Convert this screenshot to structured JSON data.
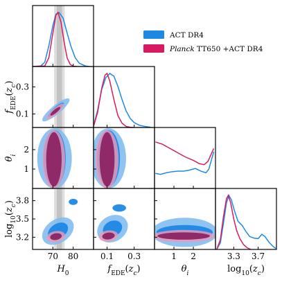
{
  "chart_data": {
    "type": "triangle",
    "legend": {
      "placement": "top-right",
      "entries": [
        {
          "name": "ACT DR4",
          "color": "#1E88E5"
        },
        {
          "name": "Planck TT650 +ACT DR4",
          "color": "#D81B60"
        }
      ]
    },
    "parameters": [
      {
        "key": "H0",
        "label": "H_0",
        "range": [
          60,
          90
        ],
        "ticks": [
          70,
          80
        ],
        "tick_labels": [
          "70",
          "80"
        ]
      },
      {
        "key": "fEDE",
        "label": "f_EDE(z_c)",
        "range": [
          0,
          0.45
        ],
        "ticks": [
          0.1,
          0.3
        ],
        "tick_labels": [
          "0.1",
          "0.3"
        ]
      },
      {
        "key": "theta_i",
        "label": "θ_i",
        "range": [
          0,
          3.14
        ],
        "ticks": [
          1,
          2
        ],
        "tick_labels": [
          "1",
          "2"
        ]
      },
      {
        "key": "log10zc",
        "label": "log10(z_c)",
        "range": [
          3.0,
          4.0
        ],
        "ticks": [
          3.3,
          3.7
        ],
        "tick_labels": [
          "3.3",
          "3.7"
        ]
      }
    ],
    "y_axis_ticks": {
      "fEDE": [
        0.1,
        0.3
      ],
      "theta_i": [
        1,
        2
      ],
      "log10zc": [
        3.2,
        3.5,
        3.8
      ]
    },
    "y_axis_tick_labels": {
      "fEDE": [
        "0.1",
        "0.3"
      ],
      "theta_i": [
        "1",
        "2"
      ],
      "log10zc": [
        "3.2",
        "3.5",
        "3.8"
      ]
    },
    "shaded_band": {
      "param": "H0",
      "center": 73.2,
      "inner_halfwidth": 1.3,
      "outer_halfwidth": 2.6
    },
    "marginals": {
      "H0": {
        "ACT DR4": [
          [
            60,
            0
          ],
          [
            64,
            0.01
          ],
          [
            66,
            0.08
          ],
          [
            68,
            0.38
          ],
          [
            70,
            0.76
          ],
          [
            71.5,
            0.97
          ],
          [
            73,
            1.0
          ],
          [
            75,
            0.9
          ],
          [
            77,
            0.62
          ],
          [
            79,
            0.36
          ],
          [
            81,
            0.16
          ],
          [
            83,
            0.06
          ],
          [
            86,
            0.01
          ],
          [
            88,
            0
          ]
        ],
        "Planck TT650 +ACT DR4": [
          [
            60,
            0
          ],
          [
            66,
            0.01
          ],
          [
            68,
            0.16
          ],
          [
            70,
            0.62
          ],
          [
            71.5,
            0.95
          ],
          [
            72.5,
            1.0
          ],
          [
            74,
            0.82
          ],
          [
            75.5,
            0.46
          ],
          [
            77,
            0.16
          ],
          [
            78.5,
            0.04
          ],
          [
            80,
            0.005
          ],
          [
            82,
            0
          ]
        ]
      },
      "fEDE": {
        "ACT DR4": [
          [
            0,
            0.03
          ],
          [
            0.03,
            0.32
          ],
          [
            0.06,
            0.7
          ],
          [
            0.09,
            0.92
          ],
          [
            0.12,
            1.0
          ],
          [
            0.15,
            0.95
          ],
          [
            0.18,
            0.76
          ],
          [
            0.21,
            0.52
          ],
          [
            0.24,
            0.31
          ],
          [
            0.27,
            0.17
          ],
          [
            0.3,
            0.09
          ],
          [
            0.34,
            0.04
          ],
          [
            0.38,
            0.02
          ],
          [
            0.42,
            0.005
          ]
        ],
        "Planck TT650 +ACT DR4": [
          [
            0,
            0.02
          ],
          [
            0.03,
            0.28
          ],
          [
            0.06,
            0.72
          ],
          [
            0.085,
            0.97
          ],
          [
            0.1,
            1.0
          ],
          [
            0.12,
            0.86
          ],
          [
            0.15,
            0.52
          ],
          [
            0.18,
            0.22
          ],
          [
            0.21,
            0.08
          ],
          [
            0.24,
            0.02
          ],
          [
            0.27,
            0.005
          ],
          [
            0.3,
            0
          ]
        ]
      },
      "theta_i": {
        "ACT DR4": [
          [
            0.05,
            0.28
          ],
          [
            0.3,
            0.26
          ],
          [
            0.6,
            0.29
          ],
          [
            0.9,
            0.31
          ],
          [
            1.2,
            0.32
          ],
          [
            1.5,
            0.32
          ],
          [
            1.8,
            0.34
          ],
          [
            2.1,
            0.37
          ],
          [
            2.4,
            0.32
          ],
          [
            2.65,
            0.29
          ],
          [
            2.8,
            0.36
          ],
          [
            2.95,
            0.55
          ],
          [
            3.05,
            0.68
          ]
        ],
        "Planck TT650 +ACT DR4": [
          [
            0.05,
            0.86
          ],
          [
            0.4,
            0.82
          ],
          [
            0.8,
            0.74
          ],
          [
            1.2,
            0.66
          ],
          [
            1.6,
            0.58
          ],
          [
            2.0,
            0.52
          ],
          [
            2.3,
            0.46
          ],
          [
            2.55,
            0.44
          ],
          [
            2.75,
            0.5
          ],
          [
            2.9,
            0.62
          ],
          [
            3.05,
            0.74
          ]
        ]
      },
      "log10zc": {
        "ACT DR4": [
          [
            3.02,
            0
          ],
          [
            3.08,
            0.12
          ],
          [
            3.13,
            0.48
          ],
          [
            3.18,
            0.86
          ],
          [
            3.22,
            1.0
          ],
          [
            3.26,
            0.92
          ],
          [
            3.31,
            0.72
          ],
          [
            3.37,
            0.52
          ],
          [
            3.44,
            0.44
          ],
          [
            3.5,
            0.33
          ],
          [
            3.56,
            0.24
          ],
          [
            3.63,
            0.21
          ],
          [
            3.7,
            0.2
          ],
          [
            3.76,
            0.28
          ],
          [
            3.81,
            0.24
          ],
          [
            3.88,
            0.13
          ],
          [
            3.95,
            0.05
          ],
          [
            3.99,
            0.02
          ]
        ],
        "Planck TT650 +ACT DR4": [
          [
            3.02,
            0
          ],
          [
            3.08,
            0.18
          ],
          [
            3.13,
            0.6
          ],
          [
            3.18,
            0.94
          ],
          [
            3.21,
            1.0
          ],
          [
            3.25,
            0.86
          ],
          [
            3.3,
            0.56
          ],
          [
            3.35,
            0.34
          ],
          [
            3.4,
            0.2
          ],
          [
            3.46,
            0.09
          ],
          [
            3.52,
            0.03
          ],
          [
            3.58,
            0
          ]
        ]
      }
    },
    "contours": {
      "H0|fEDE": {
        "ACT DR4": {
          "center": [
            71.5,
            0.13
          ],
          "outer": [
            9.5,
            0.12,
            0.87
          ],
          "inner": [
            5.5,
            0.075,
            0.87
          ]
        },
        "Planck TT650 +ACT DR4": {
          "center": [
            71.2,
            0.12
          ],
          "outer": [
            6.0,
            0.08,
            0.86
          ],
          "inner": [
            3.5,
            0.045,
            0.86
          ]
        }
      },
      "H0|theta_i": {
        "ACT DR4": {
          "center": [
            70.8,
            1.55
          ],
          "outer": [
            8.5,
            1.55,
            0.0
          ],
          "inner": [
            5.5,
            1.45,
            0.0
          ]
        },
        "Planck TT650 +ACT DR4": {
          "center": [
            70.5,
            1.5
          ],
          "outer": [
            5.5,
            1.5,
            0.0
          ],
          "inner": [
            3.8,
            1.4,
            0.0
          ]
        }
      },
      "fEDE|theta_i": {
        "ACT DR4": {
          "center": [
            0.11,
            1.55
          ],
          "outer": [
            0.13,
            1.55,
            0.0
          ],
          "inner": [
            0.085,
            1.45,
            0.0
          ]
        },
        "Planck TT650 +ACT DR4": {
          "center": [
            0.1,
            1.5
          ],
          "outer": [
            0.085,
            1.5,
            0.0
          ],
          "inner": [
            0.055,
            1.4,
            0.0
          ]
        }
      },
      "H0|log10zc": {
        "ACT DR4": {
          "center": [
            72.5,
            3.3
          ],
          "outer": [
            11.0,
            0.32,
            0.35
          ],
          "inner": [
            7.0,
            0.2,
            0.35
          ]
        },
        "Planck TT650 +ACT DR4": {
          "center": [
            71.5,
            3.21
          ],
          "outer": [
            6.5,
            0.13,
            0.2
          ],
          "inner": [
            4.0,
            0.08,
            0.2
          ]
        }
      },
      "fEDE|log10zc": {
        "ACT DR4": {
          "center": [
            0.14,
            3.34
          ],
          "outer": [
            0.16,
            0.32,
            0.2
          ],
          "inner": [
            0.1,
            0.19,
            0.2
          ]
        },
        "Planck TT650 +ACT DR4": {
          "center": [
            0.11,
            3.22
          ],
          "outer": [
            0.1,
            0.13,
            0.15
          ],
          "inner": [
            0.065,
            0.08,
            0.15
          ]
        }
      },
      "theta_i|log10zc": {
        "ACT DR4": {
          "center": [
            1.55,
            3.28
          ],
          "outer": [
            1.7,
            0.24,
            0.0
          ],
          "inner": [
            1.45,
            0.12,
            0.0
          ]
        },
        "Planck TT650 +ACT DR4": {
          "center": [
            1.5,
            3.22
          ],
          "outer": [
            1.6,
            0.1,
            0.0
          ],
          "inner": [
            1.35,
            0.06,
            0.0
          ]
        }
      }
    },
    "extra_blobs": {
      "H0|log10zc": {
        "center": [
          80,
          3.78
        ],
        "radius": [
          2.2,
          0.05
        ],
        "series": "ACT DR4"
      },
      "fEDE|log10zc": {
        "center": [
          0.19,
          3.68
        ],
        "radius": [
          0.05,
          0.06
        ],
        "series": "ACT DR4"
      }
    }
  }
}
